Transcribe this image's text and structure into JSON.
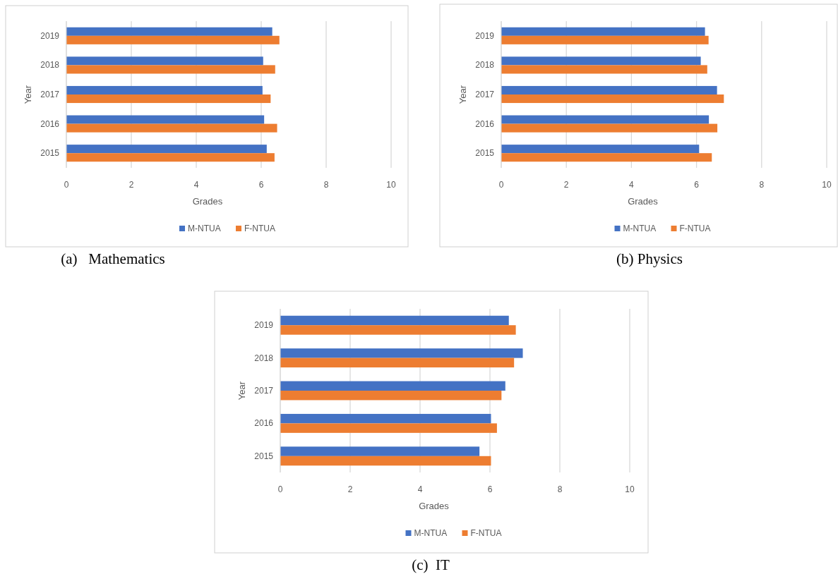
{
  "chart_data": [
    {
      "type": "bar",
      "orientation": "horizontal",
      "title": "(a)   Mathematics",
      "xlabel": "Grades",
      "ylabel": "Year",
      "categories": [
        "2019",
        "2018",
        "2017",
        "2016",
        "2015"
      ],
      "series": [
        {
          "name": "M-NTUA",
          "color": "#4472c4",
          "values": [
            6.34,
            6.06,
            6.04,
            6.09,
            6.17
          ]
        },
        {
          "name": "F-NTUA",
          "color": "#ed7d31",
          "values": [
            6.56,
            6.43,
            6.29,
            6.49,
            6.41
          ]
        }
      ],
      "xlim": [
        0,
        10
      ],
      "xticks": [
        0,
        2,
        4,
        6,
        8,
        10
      ],
      "grid": "x",
      "legend": "bottom"
    },
    {
      "type": "bar",
      "orientation": "horizontal",
      "title": "(b) Physics",
      "xlabel": "Grades",
      "ylabel": "Year",
      "categories": [
        "2019",
        "2018",
        "2017",
        "2016",
        "2015"
      ],
      "series": [
        {
          "name": "M-NTUA",
          "color": "#4472c4",
          "values": [
            6.26,
            6.13,
            6.63,
            6.38,
            6.08
          ]
        },
        {
          "name": "F-NTUA",
          "color": "#ed7d31",
          "values": [
            6.37,
            6.33,
            6.84,
            6.64,
            6.47
          ]
        }
      ],
      "xlim": [
        0,
        10
      ],
      "xticks": [
        0,
        2,
        4,
        6,
        8,
        10
      ],
      "grid": "x",
      "legend": "bottom"
    },
    {
      "type": "bar",
      "orientation": "horizontal",
      "title": "(c)  IT",
      "xlabel": "Grades",
      "ylabel": "Year",
      "categories": [
        "2019",
        "2018",
        "2017",
        "2016",
        "2015"
      ],
      "series": [
        {
          "name": "M-NTUA",
          "color": "#4472c4",
          "values": [
            6.54,
            6.94,
            6.44,
            6.03,
            5.7
          ]
        },
        {
          "name": "F-NTUA",
          "color": "#ed7d31",
          "values": [
            6.74,
            6.69,
            6.33,
            6.2,
            6.03
          ]
        }
      ],
      "xlim": [
        0,
        10
      ],
      "xticks": [
        0,
        2,
        4,
        6,
        8,
        10
      ],
      "grid": "x",
      "legend": "bottom"
    }
  ]
}
